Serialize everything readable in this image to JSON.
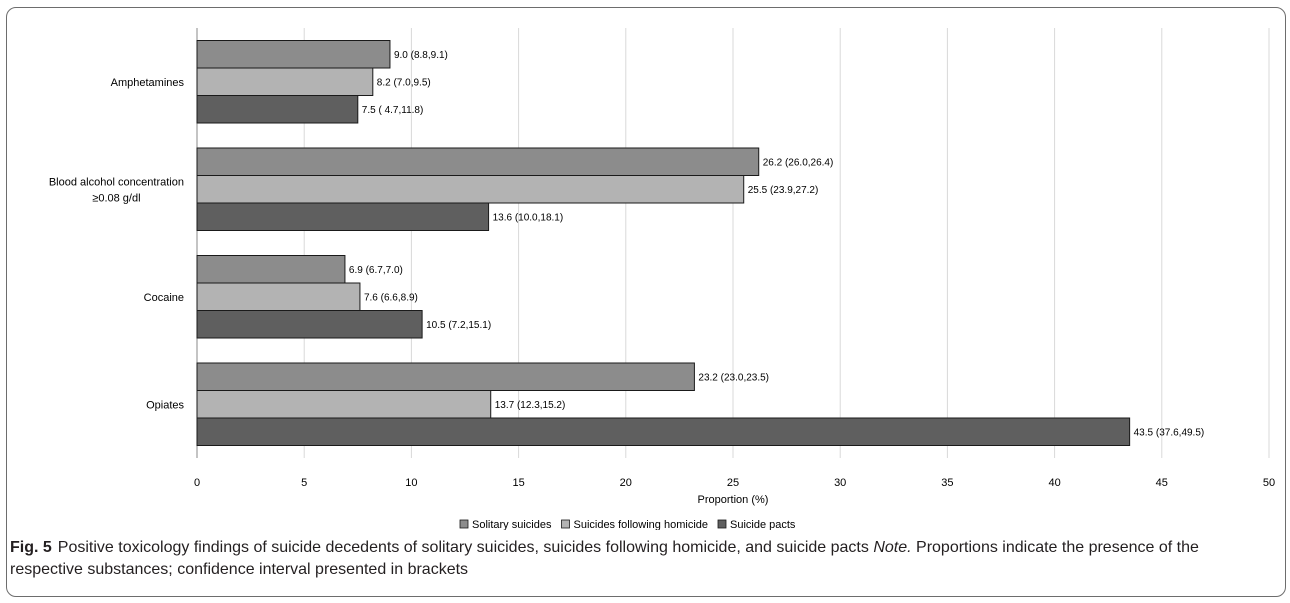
{
  "chart_data": {
    "type": "bar",
    "orientation": "horizontal",
    "categories": [
      "Amphetamines",
      "Blood alcohol concentration ≥0.08 g/dl",
      "Cocaine",
      "Opiates"
    ],
    "category_lines": [
      [
        "Amphetamines"
      ],
      [
        "Blood alcohol concentration",
        "≥0.08 g/dl"
      ],
      [
        "Cocaine"
      ],
      [
        "Opiates"
      ]
    ],
    "series": [
      {
        "name": "Solitary suicides",
        "color": "#8c8c8c",
        "values": [
          9.0,
          26.2,
          6.9,
          23.2
        ],
        "labels": [
          "9.0 (8.8,9.1)",
          "26.2 (26.0,26.4)",
          "6.9 (6.7,7.0)",
          "23.2 (23.0,23.5)"
        ]
      },
      {
        "name": "Suicides following homicide",
        "color": "#b3b3b3",
        "values": [
          8.2,
          25.5,
          7.6,
          13.7
        ],
        "labels": [
          "8.2 (7.0,9.5)",
          "25.5 (23.9,27.2)",
          "7.6 (6.6,8.9)",
          "13.7 (12.3,15.2)"
        ]
      },
      {
        "name": "Suicide pacts",
        "color": "#5f5f5f",
        "values": [
          7.5,
          13.6,
          10.5,
          43.5
        ],
        "labels": [
          "7.5 ( 4.7,11.8)",
          "13.6 (10.0,18.1)",
          "10.5 (7.2,15.1)",
          "43.5 (37.6,49.5)"
        ]
      }
    ],
    "xlabel": "Proportion (%)",
    "xlim": [
      0,
      50
    ],
    "xticks": [
      0,
      5,
      10,
      15,
      20,
      25,
      30,
      35,
      40,
      45,
      50
    ],
    "grid": "vertical",
    "legend_position": "bottom"
  },
  "caption": {
    "fig_label": "Fig. 5",
    "text": "Positive toxicology findings of suicide decedents of solitary suicides, suicides following homicide, and suicide pacts",
    "note_label": "Note.",
    "note_text": "Proportions indicate the presence of the respective substances; confidence interval presented in brackets"
  }
}
